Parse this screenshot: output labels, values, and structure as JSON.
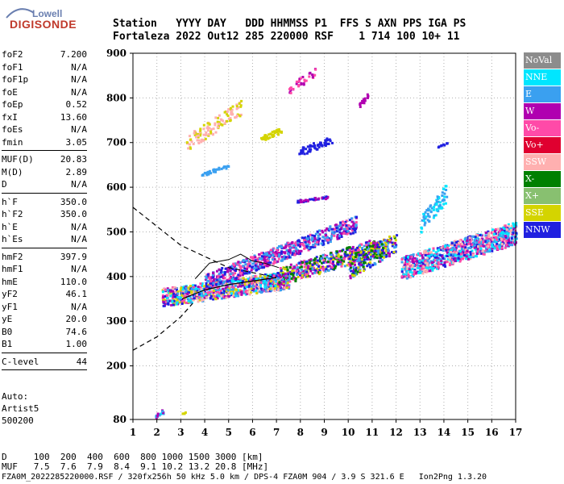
{
  "logo": {
    "top": "Lowell",
    "main": "DIGISONDE"
  },
  "header": {
    "row1": "Station   YYYY DAY   DDD HHMMSS P1  FFS S AXN PPS IGA PS",
    "row2": "Fortaleza 2022 Out12 285 220000 RSF    1 714 100 10+ 11"
  },
  "params": {
    "group1": [
      {
        "label": "foF2",
        "value": "7.200"
      },
      {
        "label": "foF1",
        "value": "N/A"
      },
      {
        "label": "foF1p",
        "value": "N/A"
      },
      {
        "label": "foE",
        "value": "N/A"
      },
      {
        "label": "foEp",
        "value": "0.52"
      },
      {
        "label": "fxI",
        "value": "13.60"
      },
      {
        "label": "foEs",
        "value": "N/A"
      },
      {
        "label": "fmin",
        "value": "3.05"
      }
    ],
    "group2": [
      {
        "label": "MUF(D)",
        "value": "20.83"
      },
      {
        "label": "M(D)",
        "value": "2.89"
      },
      {
        "label": "D",
        "value": "N/A"
      }
    ],
    "group3": [
      {
        "label": "h`F",
        "value": "350.0"
      },
      {
        "label": "h`F2",
        "value": "350.0"
      },
      {
        "label": "h`E",
        "value": "N/A"
      },
      {
        "label": "h`Es",
        "value": "N/A"
      }
    ],
    "group4": [
      {
        "label": "hmF2",
        "value": "397.9"
      },
      {
        "label": "hmF1",
        "value": "N/A"
      },
      {
        "label": "hmE",
        "value": "110.0"
      },
      {
        "label": "yF2",
        "value": "46.1"
      },
      {
        "label": "yF1",
        "value": "N/A"
      },
      {
        "label": "yE",
        "value": "20.0"
      },
      {
        "label": "B0",
        "value": "74.6"
      },
      {
        "label": "B1",
        "value": "1.00"
      }
    ],
    "group5": [
      {
        "label": "C-level",
        "value": "44"
      }
    ]
  },
  "auto": {
    "line1": "Auto:",
    "line2": "Artist5",
    "line3": "500200"
  },
  "legend": [
    {
      "label": "NoVal",
      "color": "#8c8c8c"
    },
    {
      "label": "NNE",
      "color": "#00e6ff"
    },
    {
      "label": "E",
      "color": "#3aa0f0"
    },
    {
      "label": "W",
      "color": "#b000b0"
    },
    {
      "label": "Vo-",
      "color": "#ff4aa8"
    },
    {
      "label": "Vo+",
      "color": "#e00030"
    },
    {
      "label": "SSW",
      "color": "#ffb0b0"
    },
    {
      "label": "X-",
      "color": "#008000"
    },
    {
      "label": "X+",
      "color": "#88c070"
    },
    {
      "label": "SSE",
      "color": "#d4d400"
    },
    {
      "label": "NNW",
      "color": "#2020e0"
    }
  ],
  "footer": {
    "line1": "D     100  200  400  600  800 1000 1500 3000 [km]",
    "line2": "MUF   7.5  7.6  7.9  8.4  9.1 10.2 13.2 20.8 [MHz]",
    "line3": "FZA0M_2022285220000.RSF / 320fx256h 50 kHz 5.0 km / DPS-4 FZA0M 904 / 3.9 S 321.6 E   Ion2Png 1.3.20"
  },
  "chart_data": {
    "type": "scatter",
    "x_ticks": [
      "1",
      "2",
      "3",
      "4",
      "5",
      "6",
      "7",
      "8",
      "9",
      "10",
      "11",
      "12",
      "13",
      "14",
      "15",
      "16",
      "17"
    ],
    "y_ticks": [
      "80",
      "200",
      "300",
      "400",
      "500",
      "600",
      "700",
      "800",
      "900"
    ],
    "xlim": [
      1,
      17
    ],
    "ylim": [
      80,
      900
    ],
    "grid": true,
    "legend_position": "right",
    "profile_solid": [
      [
        3.05,
        350
      ],
      [
        4,
        370
      ],
      [
        5,
        382
      ],
      [
        6,
        390
      ],
      [
        7,
        397.9
      ]
    ],
    "profile_dashed": [
      [
        1,
        555
      ],
      [
        3,
        470
      ],
      [
        5,
        420
      ],
      [
        7,
        397.9
      ]
    ],
    "profile_dashed_low": [
      [
        1,
        235
      ],
      [
        2,
        265
      ],
      [
        3,
        310
      ],
      [
        3.5,
        340
      ]
    ],
    "trace_solid_upper": [
      [
        3.6,
        395
      ],
      [
        4.2,
        430
      ],
      [
        5,
        438
      ],
      [
        5.5,
        450
      ],
      [
        6,
        435
      ],
      [
        6.5,
        430
      ],
      [
        7.1,
        420
      ]
    ]
  }
}
